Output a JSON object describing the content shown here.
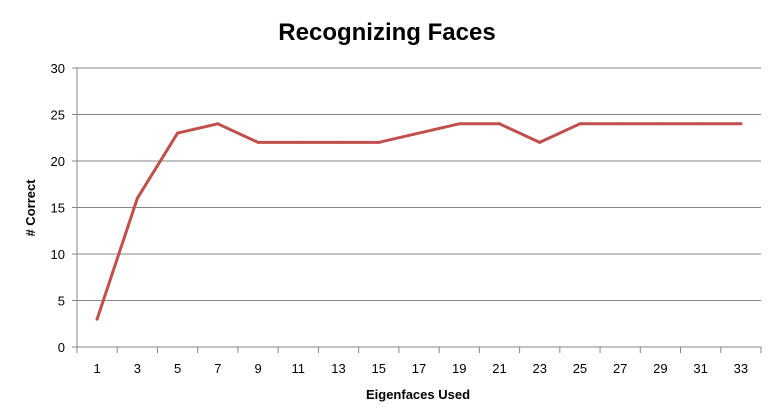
{
  "chart_data": {
    "type": "line",
    "title": "Recognizing Faces",
    "xlabel": "Eigenfaces Used",
    "ylabel": "# Correct",
    "x": [
      1,
      3,
      5,
      7,
      9,
      11,
      13,
      15,
      17,
      19,
      21,
      23,
      25,
      27,
      29,
      31,
      33
    ],
    "series": [
      {
        "values": [
          3,
          16,
          23,
          24,
          22,
          22,
          22,
          22,
          23,
          24,
          24,
          22,
          24,
          24,
          24,
          24,
          24
        ],
        "color": "#c0504d"
      }
    ],
    "ylim": [
      0,
      30
    ],
    "yticks": [
      0,
      5,
      10,
      15,
      20,
      25,
      30
    ],
    "grid": true,
    "legend": "none",
    "gridline_color": "#868686",
    "axis_color": "#868686"
  }
}
